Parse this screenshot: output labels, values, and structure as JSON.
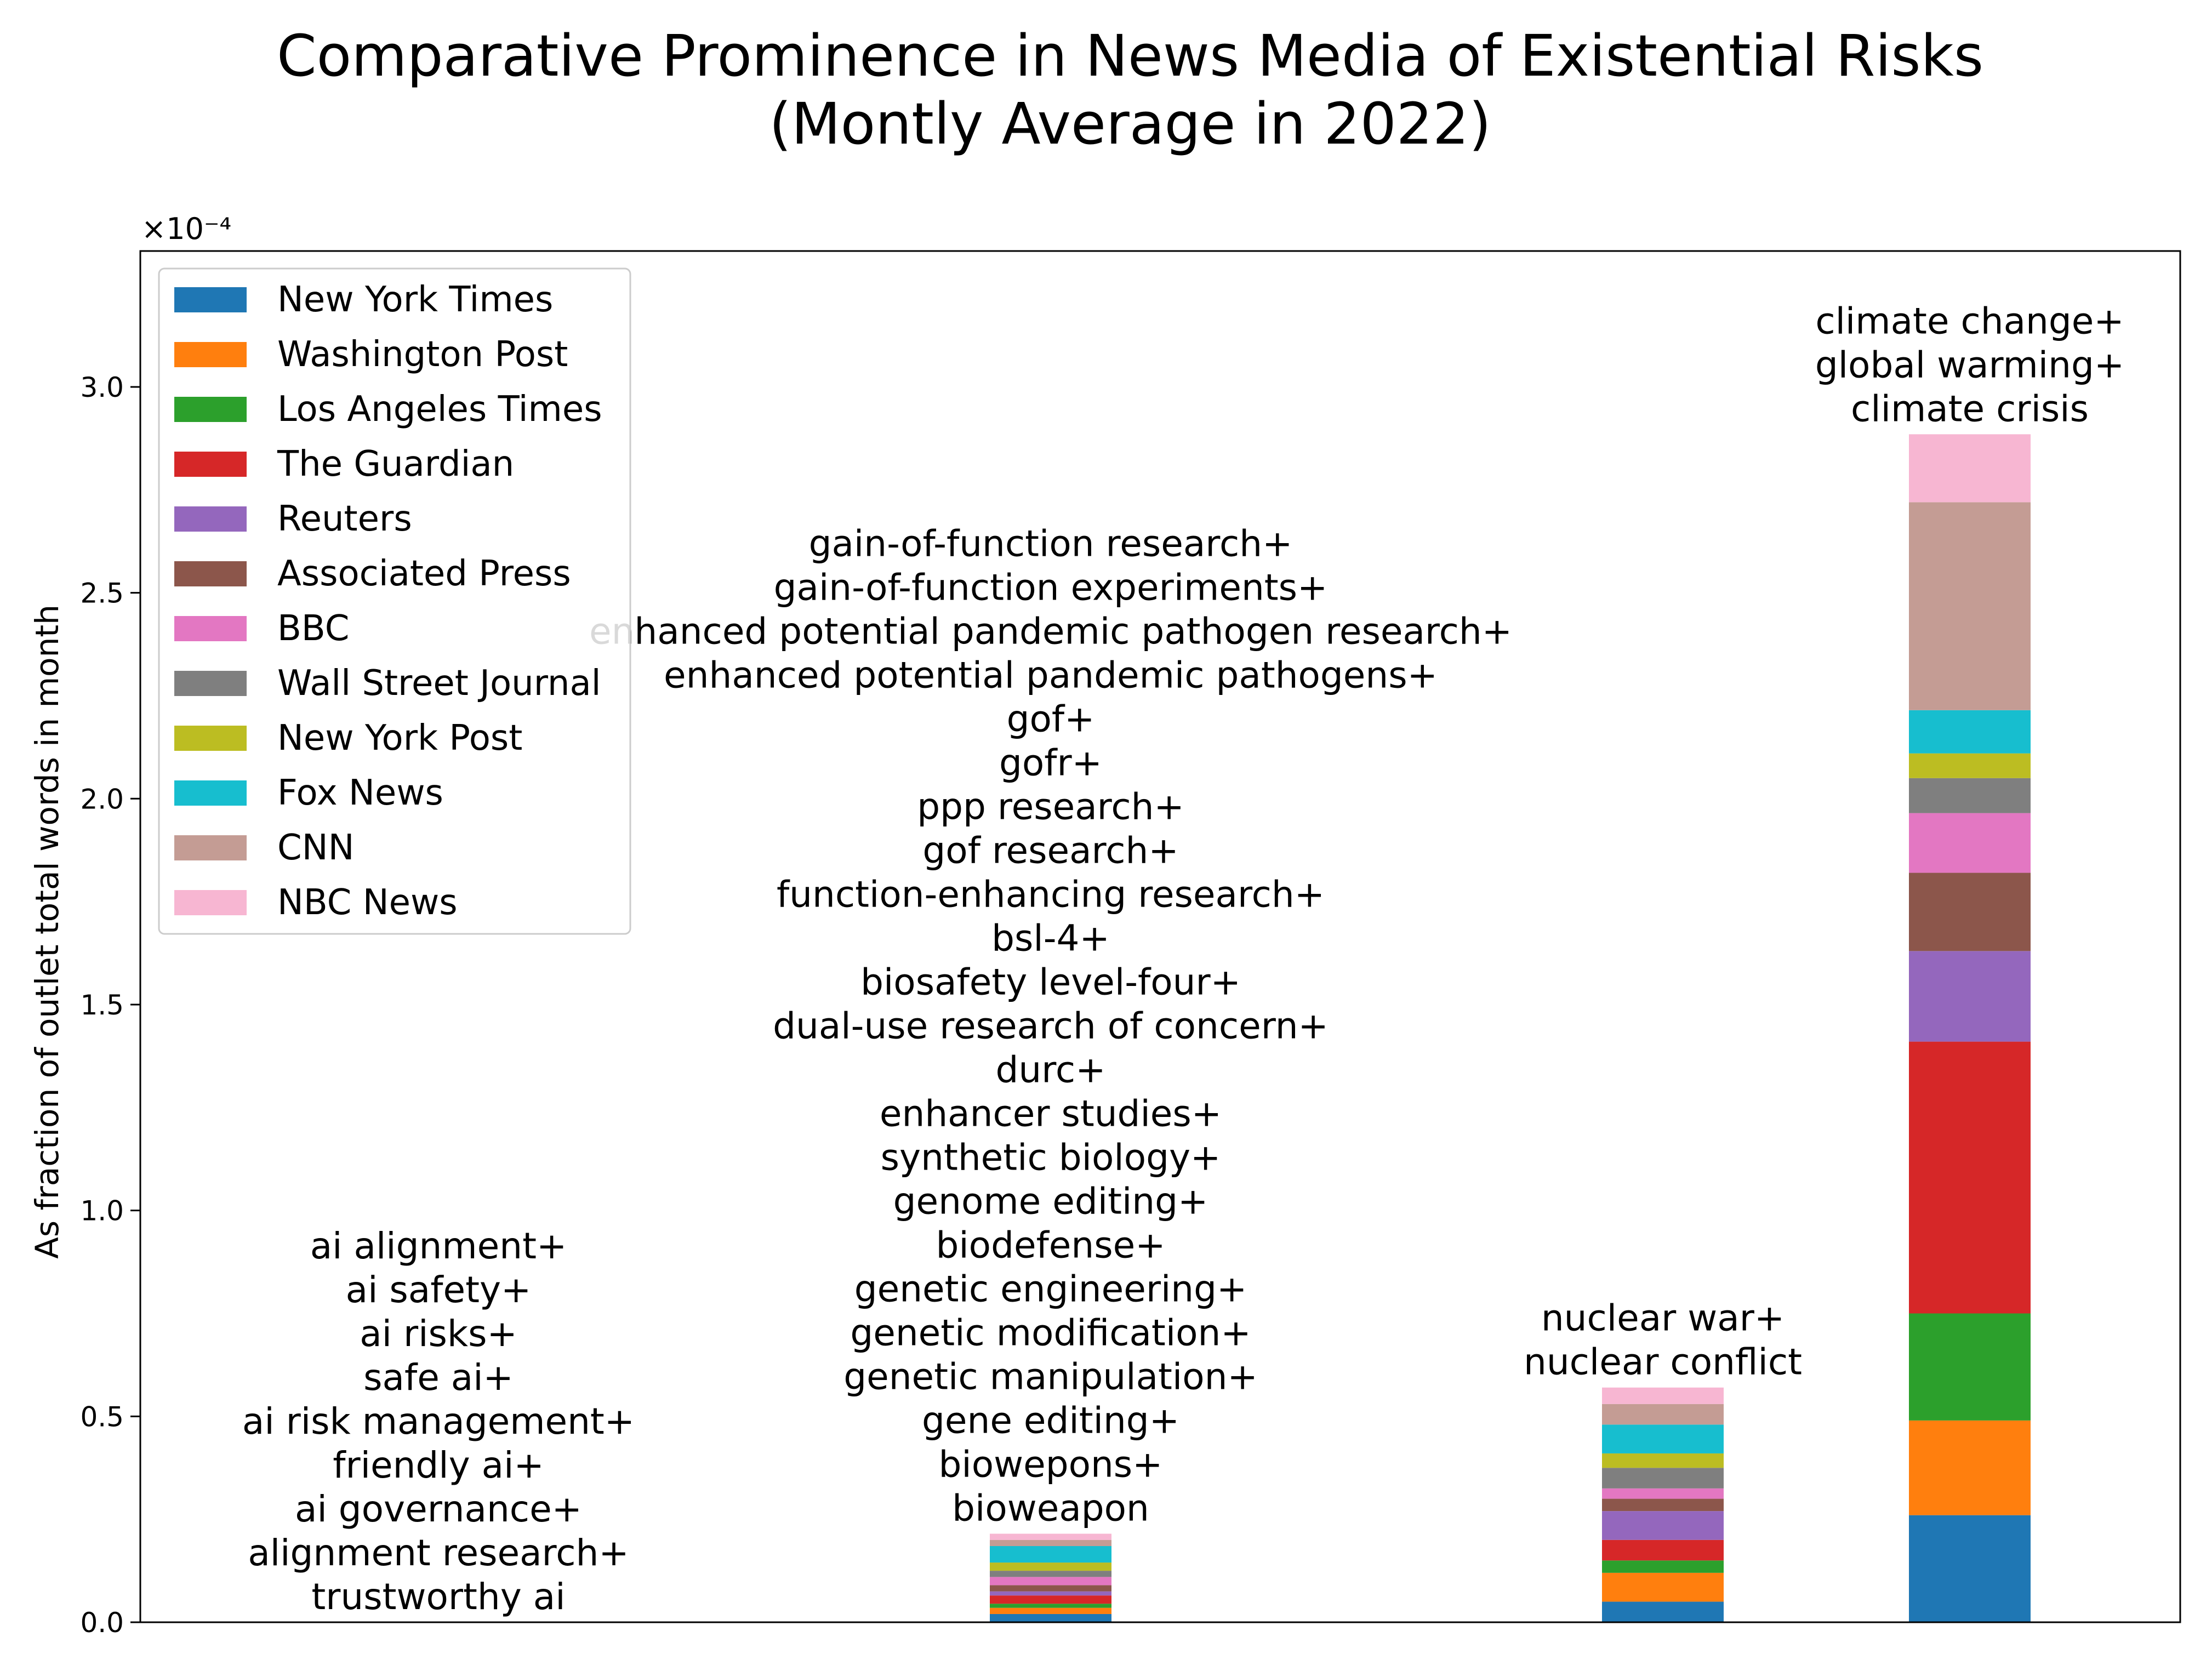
{
  "chart_data": {
    "type": "bar",
    "stacked": true,
    "title_lines": [
      "Comparative Prominence in News Media of Existential Risks",
      "(Montly Average in 2022)"
    ],
    "ylabel": "As fraction of outlet total words in month",
    "xlabel": "",
    "y_multiplier_label": "×10⁻⁴",
    "ylim": [
      0,
      3.33
    ],
    "yticks": [
      0.0,
      0.5,
      1.0,
      1.5,
      2.0,
      2.5,
      3.0
    ],
    "ytick_labels": [
      "0.0",
      "0.5",
      "1.0",
      "1.5",
      "2.0",
      "2.5",
      "3.0"
    ],
    "grid": false,
    "legend_position": "top-left",
    "categories": [
      {
        "label_lines": [
          "ai alignment+",
          "ai safety+",
          "ai risks+",
          "safe ai+",
          "ai risk management+",
          "friendly ai+",
          "ai governance+",
          "alignment research+",
          "trustworthy ai"
        ]
      },
      {
        "label_lines": [
          "gain-of-function research+",
          "gain-of-function experiments+",
          "enhanced potential pandemic pathogen research+",
          "enhanced potential pandemic pathogens+",
          "gof+",
          "gofr+",
          "ppp research+",
          "gof research+",
          "function-enhancing research+",
          "bsl-4+",
          "biosafety level-four+",
          "dual-use research of concern+",
          "durc+",
          "enhancer studies+",
          "synthetic biology+",
          "genome editing+",
          "biodefense+",
          "genetic engineering+",
          "genetic modification+",
          "genetic manipulation+",
          "gene editing+",
          "biowepons+",
          "bioweapon"
        ]
      },
      {
        "label_lines": [
          "nuclear war+",
          "nuclear conflict"
        ]
      },
      {
        "label_lines": [
          "climate change+",
          "global warming+",
          "climate crisis"
        ]
      }
    ],
    "series": [
      {
        "name": "New York Times",
        "color": "#1f77b4",
        "values": [
          0.0,
          0.02,
          0.05,
          0.26
        ]
      },
      {
        "name": "Washington Post",
        "color": "#ff7f0e",
        "values": [
          0.0,
          0.015,
          0.07,
          0.23
        ]
      },
      {
        "name": "Los Angeles Times",
        "color": "#2ca02c",
        "values": [
          0.0,
          0.01,
          0.03,
          0.26
        ]
      },
      {
        "name": "The Guardian",
        "color": "#d62728",
        "values": [
          0.0,
          0.02,
          0.05,
          0.66
        ]
      },
      {
        "name": "Reuters",
        "color": "#9467bd",
        "values": [
          0.0,
          0.01,
          0.07,
          0.22
        ]
      },
      {
        "name": "Associated Press",
        "color": "#8c564b",
        "values": [
          0.0,
          0.015,
          0.03,
          0.19
        ]
      },
      {
        "name": "BBC",
        "color": "#e377c2",
        "values": [
          0.0,
          0.02,
          0.025,
          0.145
        ]
      },
      {
        "name": "Wall Street Journal",
        "color": "#7f7f7f",
        "values": [
          0.0,
          0.015,
          0.05,
          0.085
        ]
      },
      {
        "name": "New York Post",
        "color": "#bcbd22",
        "values": [
          0.0,
          0.02,
          0.035,
          0.06
        ]
      },
      {
        "name": "Fox News",
        "color": "#17becf",
        "values": [
          0.0,
          0.04,
          0.07,
          0.105
        ]
      },
      {
        "name": "CNN",
        "color": "#c49c94",
        "values": [
          0.0,
          0.015,
          0.05,
          0.505
        ]
      },
      {
        "name": "NBC News",
        "color": "#f7b6d2",
        "values": [
          0.0,
          0.015,
          0.04,
          0.165
        ]
      }
    ]
  }
}
